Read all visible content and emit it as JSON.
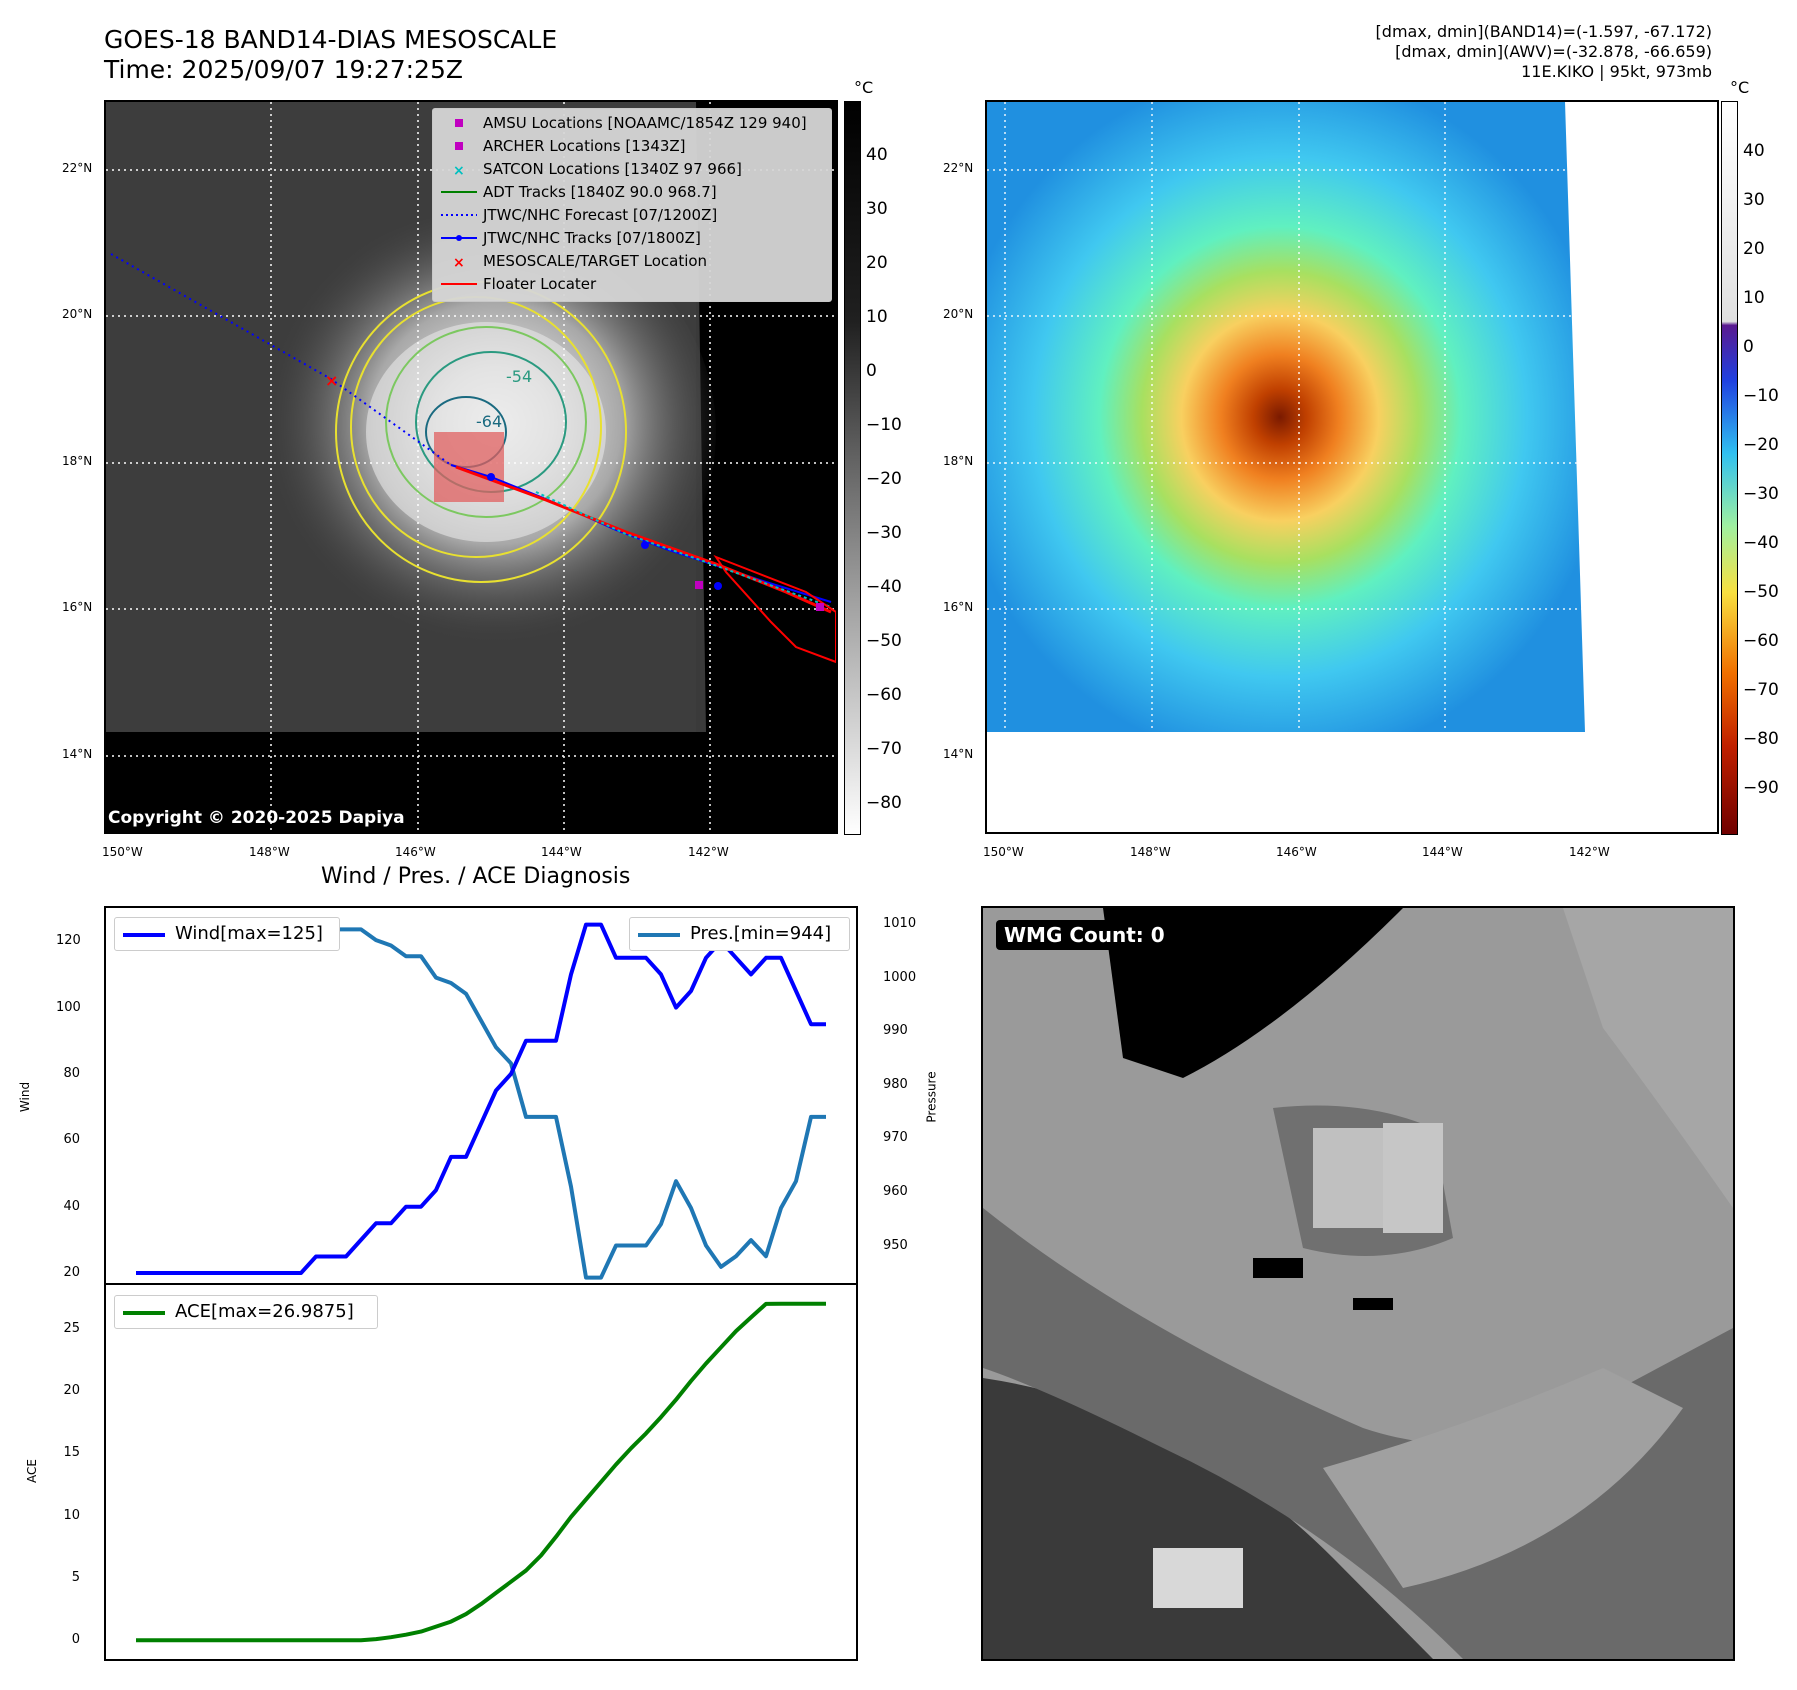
{
  "header": {
    "title_line1": "GOES-18 BAND14-DIAS MESOSCALE",
    "title_line2": "Time: 2025/09/07 19:27:25Z",
    "stats_line1": "[dmax, dmin](BAND14)=(-1.597, -67.172)",
    "stats_line2": "[dmax, dmin](AWV)=(-32.878, -66.659)",
    "stats_line3": "11E.KIKO | 95kt, 973mb"
  },
  "map": {
    "lat_ticks": [
      "22°N",
      "20°N",
      "18°N",
      "16°N",
      "14°N"
    ],
    "lon_ticks": [
      "150°W",
      "148°W",
      "146°W",
      "144°W",
      "142°W"
    ],
    "contour_labels": [
      "-54",
      "-64"
    ],
    "copyright": "Copyright © 2020-2025 Dapiya"
  },
  "legend": {
    "items": [
      {
        "label": "AMSU Locations [NOAAMC/1854Z 129 940]",
        "symbol": "square",
        "color": "#c000c0"
      },
      {
        "label": "ARCHER Locations [1343Z]",
        "symbol": "square",
        "color": "#c000c0"
      },
      {
        "label": "SATCON Locations [1340Z 97 966]",
        "symbol": "x",
        "color": "#00c0c0"
      },
      {
        "label": "ADT Tracks [1840Z 90.0 968.7]",
        "symbol": "line",
        "color": "#008000"
      },
      {
        "label": "JTWC/NHC Forecast [07/1200Z]",
        "symbol": "dotted",
        "color": "#0000ff"
      },
      {
        "label": "JTWC/NHC Tracks [07/1800Z]",
        "symbol": "line-dot",
        "color": "#0000ff"
      },
      {
        "label": "MESOSCALE/TARGET Location",
        "symbol": "x",
        "color": "#ff0000"
      },
      {
        "label": "Floater Locater",
        "symbol": "line",
        "color": "#ff0000"
      }
    ]
  },
  "colorbar_gray": {
    "unit": "°C",
    "ticks": [
      "40",
      "30",
      "20",
      "10",
      "0",
      "−10",
      "−20",
      "−30",
      "−40",
      "−50",
      "−60",
      "−70",
      "−80"
    ]
  },
  "colorbar_color": {
    "unit": "°C",
    "ticks": [
      "40",
      "30",
      "20",
      "10",
      "0",
      "−10",
      "−20",
      "−30",
      "−40",
      "−50",
      "−60",
      "−70",
      "−80",
      "−90"
    ]
  },
  "wmg": {
    "label": "WMG Count: 0"
  },
  "diagnosis": {
    "title": "Wind / Pres. / ACE Diagnosis"
  },
  "chart_data": [
    {
      "type": "line",
      "title": "Wind / Pres. / ACE Diagnosis",
      "ylabel": "Wind",
      "y2label": "Pressure",
      "ylim": [
        17,
        130
      ],
      "y2lim": [
        943,
        1013
      ],
      "y_ticks": [
        "120",
        "100",
        "80",
        "60",
        "40",
        "20"
      ],
      "y2_ticks": [
        "1010",
        "1000",
        "990",
        "980",
        "970",
        "960",
        "950"
      ],
      "x": [
        0,
        1,
        2,
        3,
        4,
        5,
        6,
        7,
        8,
        9,
        10,
        11,
        12,
        13,
        14,
        15,
        16,
        17,
        18,
        19,
        20,
        21,
        22,
        23,
        24,
        25,
        26,
        27,
        28,
        29,
        30,
        31,
        32,
        33,
        34,
        35,
        36,
        37,
        38,
        39,
        40,
        41,
        42,
        43,
        44,
        45,
        46
      ],
      "series": [
        {
          "name": "Wind[max=125]",
          "color": "#0000ff",
          "values": [
            20,
            20,
            20,
            20,
            20,
            20,
            20,
            20,
            20,
            20,
            20,
            20,
            25,
            25,
            25,
            30,
            35,
            35,
            40,
            40,
            45,
            55,
            55,
            65,
            75,
            80,
            90,
            90,
            90,
            110,
            125,
            125,
            115,
            115,
            115,
            110,
            100,
            105,
            115,
            120,
            115,
            110,
            115,
            115,
            105,
            95,
            95
          ]
        },
        {
          "name": "Pres.[min=944]",
          "color": "#1f77b4",
          "values": [
            1010,
            1010,
            1010,
            1010,
            1010,
            1010,
            1010,
            1010,
            1010,
            1010,
            1010,
            1010,
            1009,
            1009,
            1009,
            1009,
            1007,
            1006,
            1004,
            1004,
            1000,
            999,
            997,
            992,
            987,
            984,
            974,
            974,
            974,
            961,
            944,
            944,
            950,
            950,
            950,
            954,
            962,
            957,
            950,
            946,
            948,
            951,
            948,
            957,
            962,
            974,
            974
          ]
        }
      ]
    },
    {
      "type": "area",
      "ylabel": "ACE",
      "ylim": [
        -1.5,
        28.5
      ],
      "y_ticks": [
        "25",
        "20",
        "15",
        "10",
        "5",
        "0"
      ],
      "x": [
        0,
        1,
        2,
        3,
        4,
        5,
        6,
        7,
        8,
        9,
        10,
        11,
        12,
        13,
        14,
        15,
        16,
        17,
        18,
        19,
        20,
        21,
        22,
        23,
        24,
        25,
        26,
        27,
        28,
        29,
        30,
        31,
        32,
        33,
        34,
        35,
        36,
        37,
        38,
        39,
        40,
        41,
        42,
        43,
        44,
        45,
        46
      ],
      "series": [
        {
          "name": "ACE[max=26.9875]",
          "color": "#008000",
          "values": [
            0,
            0,
            0,
            0,
            0,
            0,
            0,
            0,
            0,
            0,
            0,
            0,
            0,
            0,
            0,
            0,
            0.1,
            0.25,
            0.45,
            0.7,
            1.1,
            1.5,
            2.1,
            2.9,
            3.8,
            4.7,
            5.6,
            6.8,
            8.3,
            9.9,
            11.3,
            12.7,
            14.1,
            15.4,
            16.6,
            17.9,
            19.3,
            20.8,
            22.2,
            23.5,
            24.8,
            25.9,
            26.9875,
            27.0,
            27.0,
            27.0,
            27.0
          ]
        }
      ]
    }
  ]
}
